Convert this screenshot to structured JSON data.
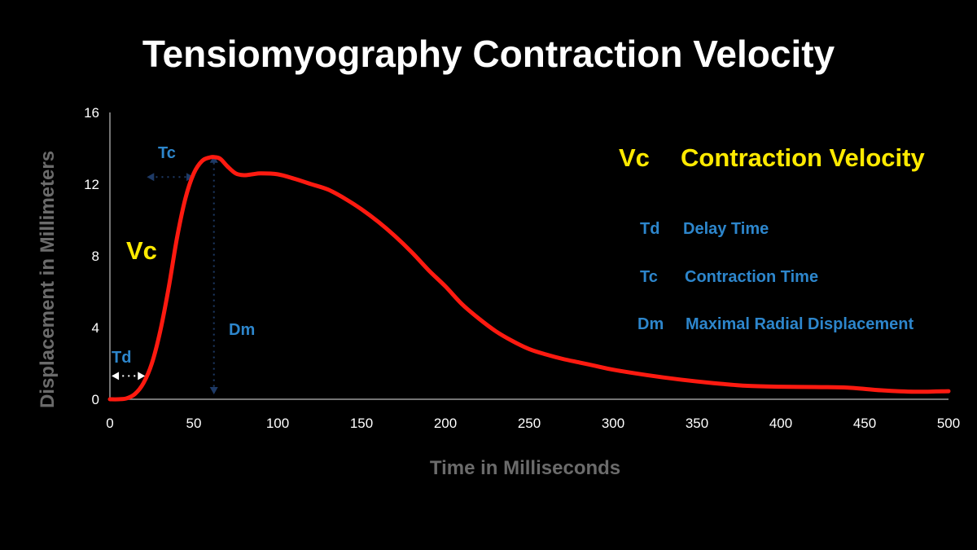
{
  "colors": {
    "background": "#000000",
    "curve": "#ff1a10",
    "annotation_blue": "#2d86cc",
    "highlight_yellow": "#ffea00",
    "axis_title_gray": "#6b6b6b",
    "marker_dark_blue": "#1e3a66"
  },
  "chart_data": {
    "type": "line",
    "title": "Tensiomyography Contraction Velocity",
    "xlabel": "Time in Milliseconds",
    "ylabel": "Displacement in Millimeters",
    "xlim": [
      0,
      500
    ],
    "ylim": [
      0,
      16
    ],
    "x_ticks": [
      0,
      50,
      100,
      150,
      200,
      250,
      300,
      350,
      400,
      450,
      500
    ],
    "y_ticks": [
      0,
      4,
      8,
      12,
      16
    ],
    "grid": false,
    "series": [
      {
        "x": [
          0,
          5,
          10,
          15,
          20,
          25,
          30,
          35,
          40,
          45,
          50,
          55,
          60,
          63,
          66,
          70,
          75,
          80,
          85,
          90,
          100,
          110,
          120,
          130,
          140,
          150,
          160,
          170,
          180,
          190,
          200,
          210,
          220,
          230,
          240,
          250,
          260,
          270,
          280,
          290,
          300,
          320,
          340,
          360,
          380,
          400,
          420,
          440,
          460,
          480,
          500
        ],
        "y": [
          0.0,
          0.0,
          0.05,
          0.3,
          0.9,
          2.0,
          3.8,
          6.2,
          9.0,
          11.2,
          12.6,
          13.3,
          13.5,
          13.5,
          13.4,
          13.0,
          12.6,
          12.5,
          12.55,
          12.6,
          12.55,
          12.3,
          12.0,
          11.7,
          11.2,
          10.6,
          9.9,
          9.1,
          8.2,
          7.2,
          6.3,
          5.3,
          4.5,
          3.8,
          3.25,
          2.8,
          2.5,
          2.25,
          2.05,
          1.85,
          1.65,
          1.35,
          1.1,
          0.9,
          0.75,
          0.7,
          0.68,
          0.65,
          0.5,
          0.42,
          0.45
        ]
      }
    ],
    "annotations": {
      "curve_label": "Vc",
      "td_label": "Td",
      "tc_label": "Tc",
      "dm_label": "Dm"
    }
  },
  "legend": {
    "heading_abbr": "Vc",
    "heading_text": "Contraction Velocity",
    "items": [
      {
        "abbr": "Td",
        "text": "Delay Time"
      },
      {
        "abbr": "Tc",
        "text": "Contraction Time"
      },
      {
        "abbr": "Dm",
        "text": "Maximal Radial Displacement"
      }
    ]
  }
}
